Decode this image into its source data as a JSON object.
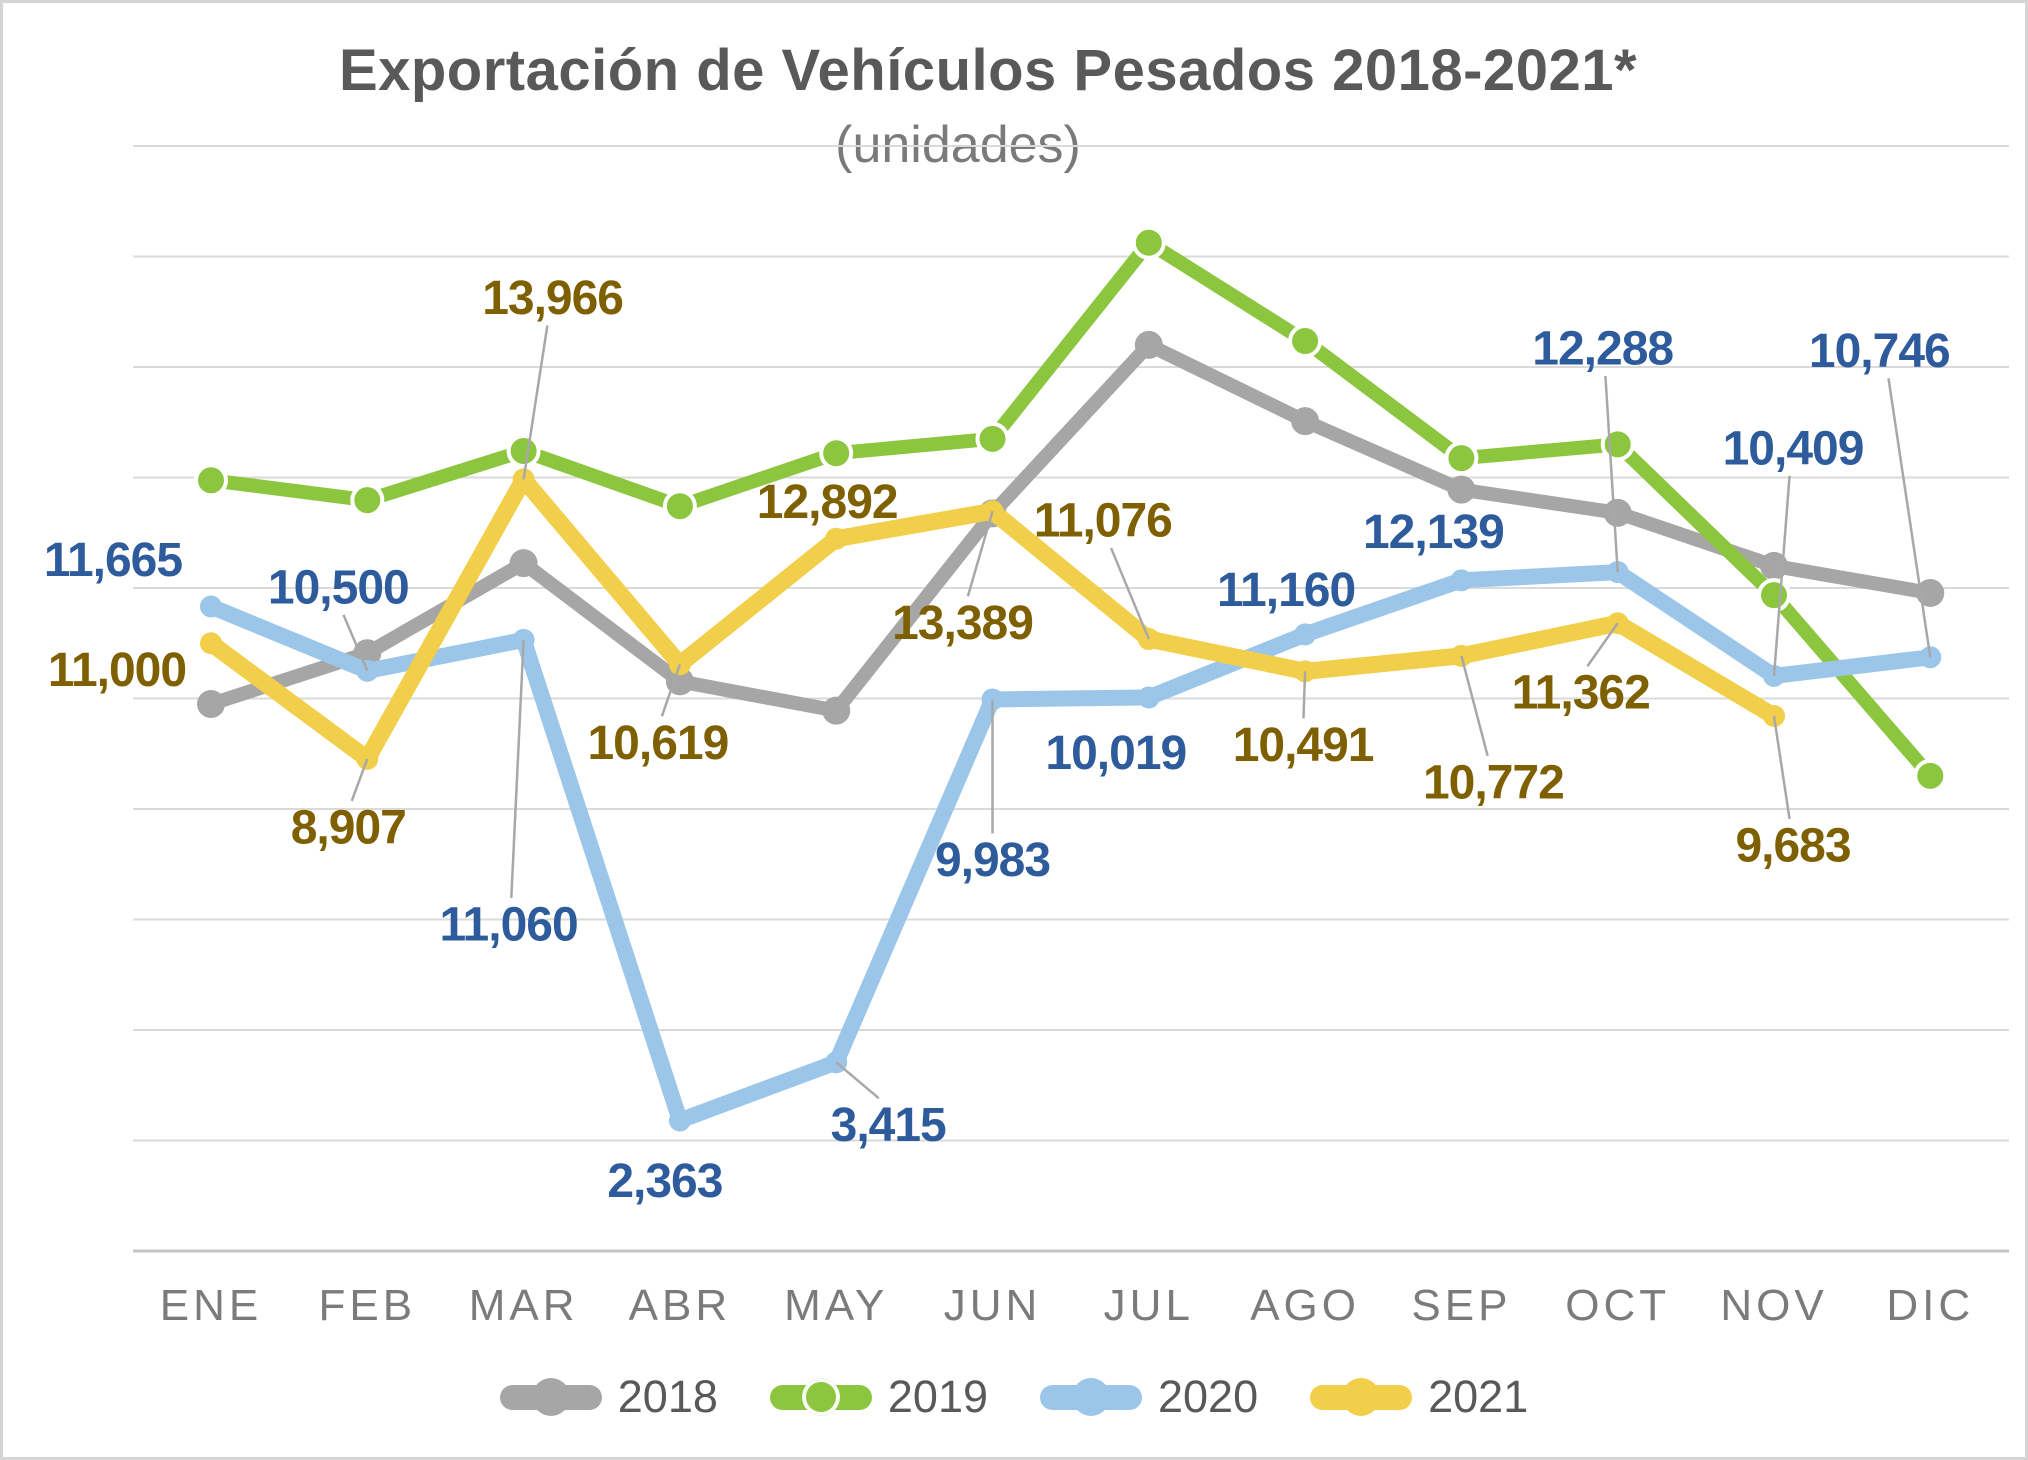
{
  "title": "Exportación de Vehículos Pesados 2018-2021*",
  "subtitle": "(unidades)",
  "chart_data": {
    "type": "line",
    "categories": [
      "ENE",
      "FEB",
      "MAR",
      "ABR",
      "MAY",
      "JUN",
      "JUL",
      "AGO",
      "SEP",
      "OCT",
      "NOV",
      "DIC"
    ],
    "ylim": [
      0,
      20000
    ],
    "grid_step": 2000,
    "grid": true,
    "y_tick_labels_visible": false,
    "legend_position": "bottom",
    "series": [
      {
        "name": "2018",
        "color": "#A6A6A6",
        "values": [
          9900,
          10820,
          12450,
          10310,
          9780,
          13350,
          16400,
          15020,
          13780,
          13360,
          12400,
          11910
        ],
        "data_labels": []
      },
      {
        "name": "2019",
        "color": "#8CC63E",
        "values": [
          13950,
          13590,
          14480,
          13480,
          14440,
          14700,
          18250,
          16470,
          14350,
          14600,
          11870,
          8600
        ],
        "data_labels": []
      },
      {
        "name": "2020",
        "color": "#9CC6E9",
        "label_color": "#2E5B9B",
        "values": [
          11665,
          10500,
          11060,
          2363,
          3415,
          9983,
          10019,
          11160,
          12139,
          12288,
          10409,
          10746
        ],
        "data_labels": [
          "11,665",
          "10,500",
          "11,060",
          "2,363",
          "3,415",
          "9,983",
          "10,019",
          "11,160",
          "12,139",
          "12,288",
          "10,409",
          "10,746"
        ]
      },
      {
        "name": "2021",
        "color": "#F1CF4A",
        "label_color": "#7F6000",
        "values": [
          11000,
          8907,
          13966,
          10619,
          12892,
          13389,
          11076,
          10491,
          10772,
          11362,
          9683
        ],
        "data_labels": [
          "11,000",
          "8,907",
          "13,966",
          "10,619",
          "12,892",
          "13,389",
          "11,076",
          "10,491",
          "10,772",
          "11,362",
          "9,683"
        ]
      }
    ],
    "colors": {
      "background": "#FFFFFF",
      "grid": "#DADADA",
      "axis": "#C4C4C4",
      "leader_line": "#A8A8A8",
      "title": "#595959",
      "subtitle": "#7A7A7A",
      "month_labels": "#7B7B7B",
      "legend_text": "#595959"
    }
  },
  "legend": {
    "items": [
      {
        "label": "2018"
      },
      {
        "label": "2019"
      },
      {
        "label": "2020"
      },
      {
        "label": "2021"
      }
    ]
  }
}
